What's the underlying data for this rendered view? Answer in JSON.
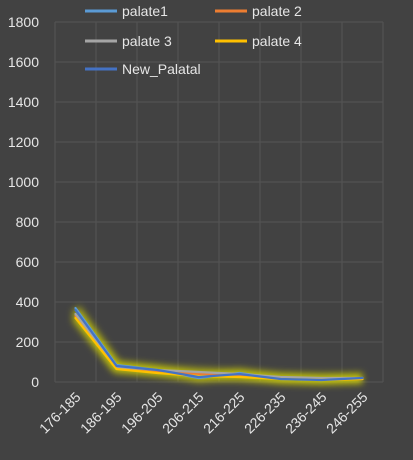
{
  "chart_data": {
    "type": "line",
    "categories": [
      "176-185",
      "186-195",
      "196-205",
      "206-215",
      "216-225",
      "226-235",
      "236-245",
      "246-255"
    ],
    "ylim": [
      0,
      1800
    ],
    "yticks": [
      0,
      200,
      400,
      600,
      800,
      1000,
      1200,
      1400,
      1600,
      1800
    ],
    "grid": true,
    "legend_position": "top",
    "series": [
      {
        "name": "palate1",
        "color": "#5b9bd5",
        "values": [
          370,
          85,
          60,
          20,
          45,
          15,
          10,
          20
        ]
      },
      {
        "name": "palate 2",
        "color": "#ed7d31",
        "values": [
          330,
          70,
          55,
          40,
          30,
          20,
          15,
          15
        ]
      },
      {
        "name": "palate 3",
        "color": "#a5a5a5",
        "values": [
          340,
          75,
          60,
          50,
          40,
          25,
          20,
          20
        ]
      },
      {
        "name": "palate 4",
        "color": "#ffc000",
        "values": [
          320,
          65,
          45,
          30,
          25,
          15,
          10,
          15
        ]
      },
      {
        "name": "New_Palatal",
        "color": "#4472c4",
        "values": [
          360,
          80,
          60,
          25,
          40,
          15,
          10,
          20
        ]
      }
    ]
  }
}
